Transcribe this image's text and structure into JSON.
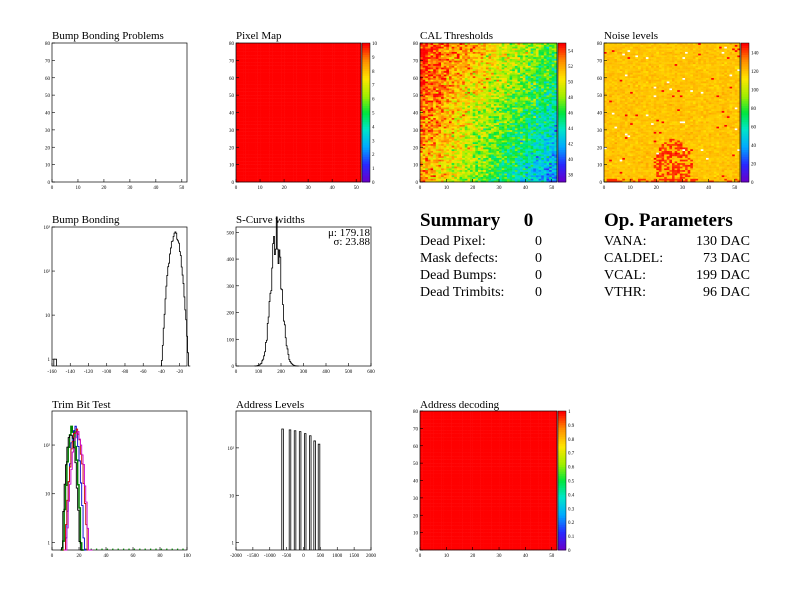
{
  "chart_data": [
    {
      "id": "bump-problems",
      "type": "heatmap",
      "title": "Bump Bonding Problems",
      "xlim": [
        0,
        52
      ],
      "ylim": [
        0,
        80
      ],
      "xticks": [
        0,
        10,
        20,
        30,
        40,
        50
      ],
      "yticks": [
        0,
        10,
        20,
        30,
        40,
        50,
        60,
        70,
        80
      ],
      "fill": "empty"
    },
    {
      "id": "pixel-map",
      "type": "heatmap",
      "title": "Pixel Map",
      "xlim": [
        0,
        52
      ],
      "ylim": [
        0,
        80
      ],
      "xticks": [
        0,
        10,
        20,
        30,
        40,
        50
      ],
      "yticks": [
        0,
        10,
        20,
        30,
        40,
        50,
        60,
        70,
        80
      ],
      "fill": "uniform",
      "value": 10,
      "zlim": [
        0,
        10
      ],
      "zticks": [
        0,
        1,
        2,
        3,
        4,
        5,
        6,
        7,
        8,
        9,
        10
      ]
    },
    {
      "id": "cal-thresholds",
      "type": "heatmap",
      "title": "CAL Thresholds",
      "xlim": [
        0,
        52
      ],
      "ylim": [
        0,
        80
      ],
      "xticks": [
        0,
        10,
        20,
        30,
        40,
        50
      ],
      "yticks": [
        0,
        10,
        20,
        30,
        40,
        50,
        60,
        70,
        80
      ],
      "fill": "gradient",
      "zlim": [
        37,
        55
      ],
      "zticks": [
        38,
        40,
        42,
        44,
        46,
        48,
        50,
        52,
        54
      ],
      "corner_values": {
        "top_left": 55,
        "top_right": 47,
        "bottom_left": 52,
        "bottom_right": 41
      }
    },
    {
      "id": "noise-levels",
      "type": "heatmap",
      "title": "Noise levels",
      "xlim": [
        0,
        52
      ],
      "ylim": [
        0,
        80
      ],
      "xticks": [
        0,
        10,
        20,
        30,
        40,
        50
      ],
      "yticks": [
        0,
        10,
        20,
        30,
        40,
        50,
        60,
        70,
        80
      ],
      "fill": "noisy",
      "base_value": 120,
      "zlim": [
        0,
        150
      ],
      "zticks": [
        0,
        20,
        40,
        60,
        80,
        100,
        120,
        140
      ]
    },
    {
      "id": "bump-bonding",
      "type": "histogram",
      "title": "Bump Bonding",
      "xlim": [
        -160,
        -12
      ],
      "ylim": [
        0.7,
        1000
      ],
      "log_y": true,
      "xticks": [
        -160,
        -140,
        -120,
        -100,
        -80,
        -60,
        -40,
        -20
      ],
      "yticks": [
        1,
        10,
        100,
        1000
      ],
      "ytick_labels": [
        "1",
        "10",
        "10²",
        "10³"
      ],
      "peaks": [
        {
          "mean": -25,
          "sigma": 4,
          "height": 700
        }
      ],
      "extra_bins": [
        {
          "x": -158,
          "y": 1
        }
      ]
    },
    {
      "id": "s-curve-widths",
      "type": "histogram",
      "title": "S-Curve widths",
      "xlim": [
        0,
        600
      ],
      "ylim": [
        0,
        520
      ],
      "log_y": false,
      "xticks": [
        0,
        100,
        200,
        300,
        400,
        500,
        600
      ],
      "yticks": [
        0,
        100,
        200,
        300,
        400,
        500
      ],
      "peaks": [
        {
          "mean": 179,
          "sigma": 24,
          "height": 490
        }
      ],
      "stats": {
        "mu_label": "μ: 179.18",
        "sigma_label": "σ: 23.88"
      }
    },
    {
      "id": "trim-bit-test",
      "type": "histogram",
      "title": "Trim Bit Test",
      "xlim": [
        0,
        100
      ],
      "ylim": [
        0.7,
        500
      ],
      "log_y": true,
      "xticks": [
        0,
        20,
        40,
        60,
        80,
        100
      ],
      "yticks": [
        1,
        10,
        100
      ],
      "ytick_labels": [
        "1",
        "10",
        "10²"
      ],
      "series": [
        {
          "mean": 15,
          "sigma": 2.0,
          "height": 220,
          "color": "#008000",
          "line_width": 1.5,
          "baseline_dots": true
        },
        {
          "mean": 17,
          "sigma": 2.0,
          "height": 220,
          "color": "#0000cc",
          "line_width": 0.9
        },
        {
          "mean": 18,
          "sigma": 2.5,
          "height": 200,
          "color": "#cc0000",
          "line_width": 0.9
        },
        {
          "mean": 19,
          "sigma": 2.5,
          "height": 180,
          "color": "#cc00cc",
          "line_width": 0.9
        },
        {
          "mean": 14,
          "sigma": 2.0,
          "height": 180,
          "color": "#000000",
          "line_width": 0.9
        }
      ]
    },
    {
      "id": "address-levels",
      "type": "histogram",
      "title": "Address Levels",
      "xlim": [
        -2000,
        2000
      ],
      "ylim": [
        0.7,
        600
      ],
      "log_y": true,
      "xticks": [
        -2000,
        -1500,
        -1000,
        -500,
        0,
        500,
        1000,
        1500,
        2000
      ],
      "yticks": [
        1,
        10,
        100
      ],
      "ytick_labels": [
        "1",
        "10",
        "10²"
      ],
      "spikes": [
        {
          "x": -620,
          "h": 250
        },
        {
          "x": -400,
          "h": 240
        },
        {
          "x": -250,
          "h": 230
        },
        {
          "x": -100,
          "h": 220
        },
        {
          "x": 50,
          "h": 200
        },
        {
          "x": 200,
          "h": 180
        },
        {
          "x": 330,
          "h": 140
        },
        {
          "x": 460,
          "h": 120
        }
      ]
    },
    {
      "id": "address-decoding",
      "type": "heatmap",
      "title": "Address decoding",
      "xlim": [
        0,
        52
      ],
      "ylim": [
        0,
        80
      ],
      "xticks": [
        0,
        10,
        20,
        30,
        40,
        50
      ],
      "yticks": [
        0,
        10,
        20,
        30,
        40,
        50,
        60,
        70,
        80
      ],
      "fill": "uniform",
      "value": 1,
      "zlim": [
        0,
        1
      ],
      "zticks": [
        0,
        0.1,
        0.2,
        0.3,
        0.4,
        0.5,
        0.6,
        0.7,
        0.8,
        0.9,
        1
      ]
    }
  ],
  "summary": {
    "title": "Summary",
    "count": "0",
    "rows": [
      {
        "label": "Dead Pixel:",
        "value": "0"
      },
      {
        "label": "Mask defects:",
        "value": "0"
      },
      {
        "label": "Dead Bumps:",
        "value": "0"
      },
      {
        "label": "Dead Trimbits:",
        "value": "0"
      }
    ]
  },
  "op_parameters": {
    "title": "Op. Parameters",
    "rows": [
      {
        "label": "VANA:",
        "value": "130 DAC"
      },
      {
        "label": "CALDEL:",
        "value": "73 DAC"
      },
      {
        "label": "VCAL:",
        "value": "199 DAC"
      },
      {
        "label": "VTHR:",
        "value": "96 DAC"
      }
    ]
  }
}
